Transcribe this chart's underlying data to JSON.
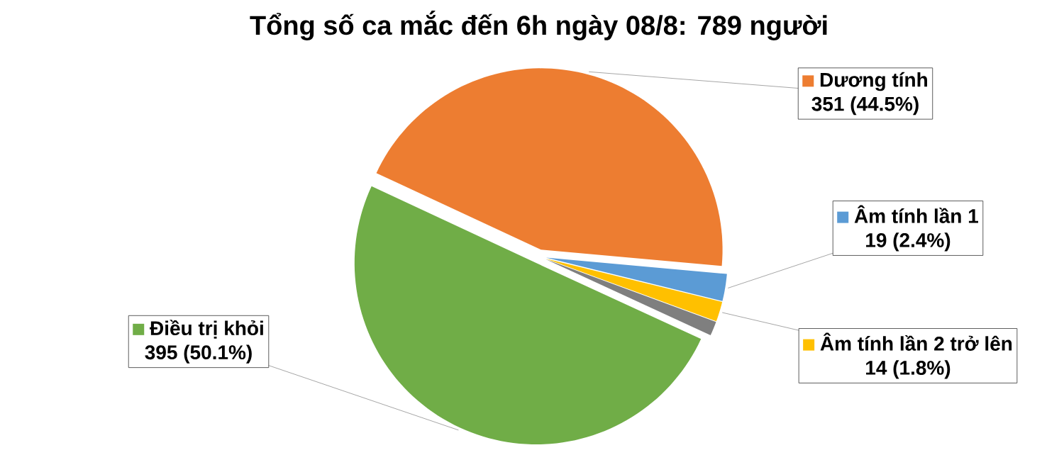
{
  "chart_data": {
    "type": "pie",
    "title": "Tổng số ca mắc đến 6h ngày 08/8: 789 người",
    "categories": [
      "Dương tính",
      "Âm tính lần 1",
      "Âm tính lần 2 trở lên",
      null,
      "Điều trị khỏi"
    ],
    "values": [
      351,
      19,
      14,
      10,
      395
    ],
    "value_labels": [
      "351 (44.5%)",
      "19 (2.4%)",
      "14 (1.8%)",
      null,
      "395 (50.1%)"
    ],
    "colors": [
      "#ed7d31",
      "#5b9bd5",
      "#ffc000",
      "#7f7f7f",
      "#70ad47"
    ],
    "legend": "right"
  }
}
